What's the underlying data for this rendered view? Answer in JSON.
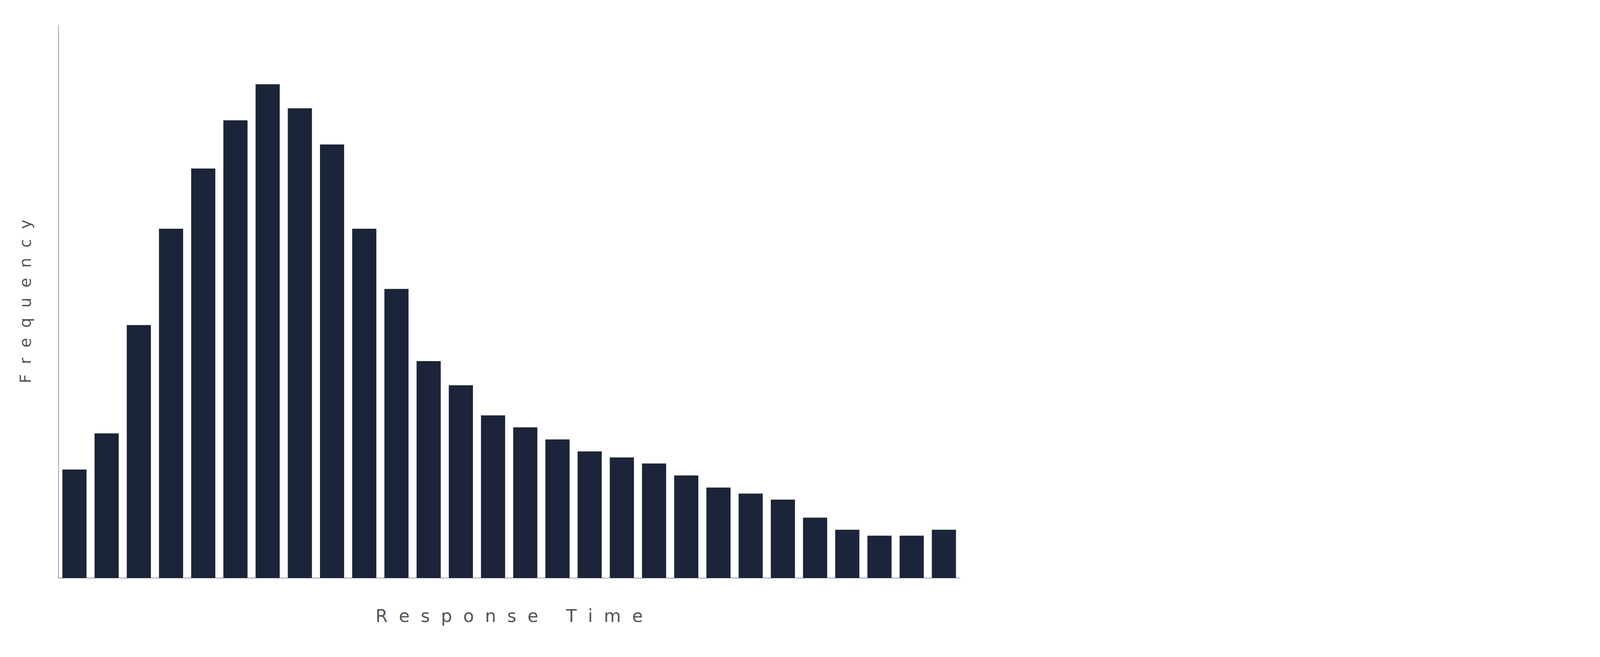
{
  "chart_data": {
    "type": "bar",
    "xlabel": "R  e  s  p  o  n  s  e     T  i  m  e",
    "ylabel": "F  r  e  q  u  e  n  c  y",
    "categories": [
      null,
      null,
      null,
      null,
      null,
      null,
      null,
      null,
      null,
      null,
      null,
      null,
      null,
      null,
      null,
      null,
      null,
      null,
      null,
      null,
      null,
      null,
      null,
      null,
      null,
      null,
      null,
      null
    ],
    "values": [
      18,
      24,
      42,
      58,
      68,
      76,
      82,
      78,
      72,
      58,
      48,
      36,
      32,
      27,
      25,
      23,
      21,
      20,
      19,
      17,
      15,
      14,
      13,
      10,
      8,
      7,
      7,
      8
    ],
    "color": "#1b2438",
    "ylim": [
      0,
      91.84
    ],
    "grid": false,
    "tick_labels": false
  }
}
